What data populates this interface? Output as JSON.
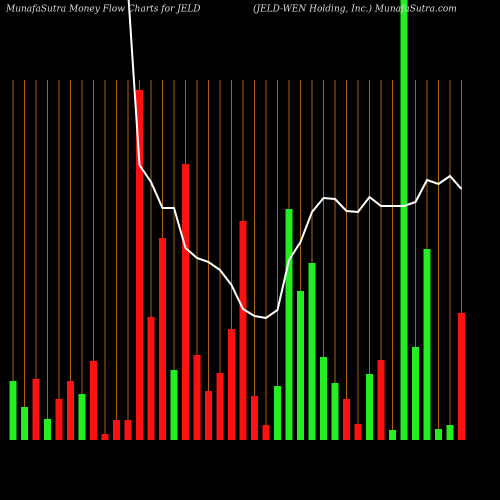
{
  "chart_data": {
    "type": "bar",
    "title": "MunafaSutra  Money Flow  Charts for JELD",
    "subtitle": "(JELD-WEN  Holding,  Inc.) MunafaSutra.com",
    "values": [
      59,
      33,
      61,
      21,
      41,
      59,
      46,
      79,
      6,
      20,
      20,
      350,
      123,
      202,
      70,
      276,
      85,
      49,
      67,
      111,
      219,
      44,
      15,
      54,
      231,
      149,
      177,
      83,
      57,
      41,
      16,
      66,
      80,
      10,
      440,
      93,
      191,
      11,
      15,
      127
    ],
    "colors": [
      "#22ee22",
      "#22ee22",
      "#ff1111",
      "#22ee22",
      "#ff1111",
      "#ff1111",
      "#22ee22",
      "#ff1111",
      "#ff1111",
      "#ff1111",
      "#ff1111",
      "#ff1111",
      "#ff1111",
      "#ff1111",
      "#22ee22",
      "#ff1111",
      "#ff1111",
      "#ff1111",
      "#ff1111",
      "#ff1111",
      "#ff1111",
      "#ff1111",
      "#ff1111",
      "#22ee22",
      "#22ee22",
      "#22ee22",
      "#22ee22",
      "#22ee22",
      "#22ee22",
      "#ff1111",
      "#ff1111",
      "#22ee22",
      "#ff1111",
      "#22ee22",
      "#22ee22",
      "#22ee22",
      "#22ee22",
      "#22ee22",
      "#22ee22",
      "#ff1111"
    ],
    "line": {
      "color": "#ffffff",
      "values": [
        null,
        null,
        null,
        null,
        null,
        null,
        null,
        null,
        null,
        null,
        450,
        275,
        258,
        232,
        232,
        192,
        182,
        178,
        170,
        155,
        131,
        124,
        122,
        130,
        180,
        198,
        228,
        242,
        241,
        229,
        228,
        243,
        234,
        234,
        234,
        238,
        260,
        256,
        264,
        251
      ]
    },
    "ylim": [
      0,
      440
    ],
    "grid": true,
    "grid_color": "#b06010"
  }
}
